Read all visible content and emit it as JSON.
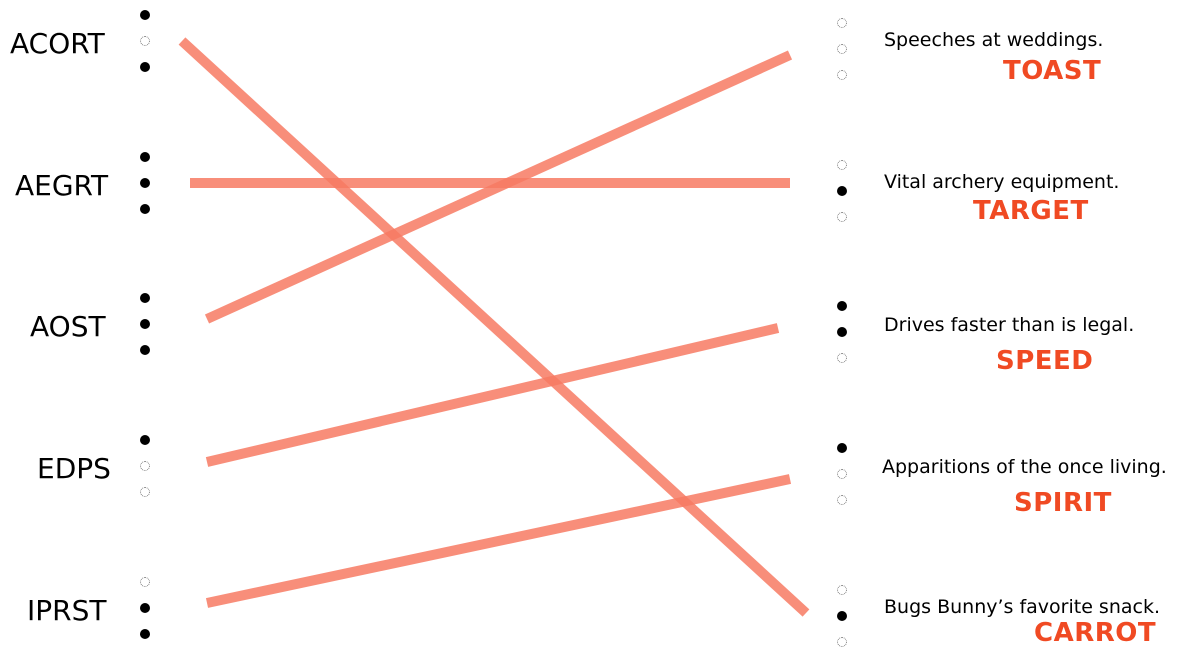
{
  "accent_color": "#f04a23",
  "line_color": "#f77a63",
  "scrambled_words": [
    {
      "text": "ACORT",
      "dots": [
        "filled",
        "empty",
        "filled"
      ]
    },
    {
      "text": "AEGRT",
      "dots": [
        "filled",
        "filled",
        "filled"
      ]
    },
    {
      "text": "AOST",
      "dots": [
        "filled",
        "filled",
        "filled"
      ]
    },
    {
      "text": "EDPS",
      "dots": [
        "filled",
        "empty",
        "empty"
      ]
    },
    {
      "text": "IPRST",
      "dots": [
        "empty",
        "filled",
        "filled"
      ]
    }
  ],
  "clues": [
    {
      "text": "Speeches at weddings.",
      "answer": "TOAST",
      "dots": [
        "empty",
        "empty",
        "empty"
      ]
    },
    {
      "text": "Vital archery equipment.",
      "answer": "TARGET",
      "dots": [
        "empty",
        "filled",
        "empty"
      ]
    },
    {
      "text": "Drives faster than is legal.",
      "answer": "SPEED",
      "dots": [
        "filled",
        "filled",
        "empty"
      ]
    },
    {
      "text": "Apparitions of the once living.",
      "answer": "SPIRIT",
      "dots": [
        "filled",
        "empty",
        "empty"
      ]
    },
    {
      "text": "Bugs Bunny’s favorite snack.",
      "answer": "CARROT",
      "dots": [
        "empty",
        "filled",
        "empty"
      ]
    }
  ],
  "connections": [
    {
      "from": "ACORT",
      "to": "CARROT"
    },
    {
      "from": "AEGRT",
      "to": "TARGET"
    },
    {
      "from": "AOST",
      "to": "TOAST"
    },
    {
      "from": "EDPS",
      "to": "SPEED"
    },
    {
      "from": "IPRST",
      "to": "SPIRIT"
    }
  ]
}
